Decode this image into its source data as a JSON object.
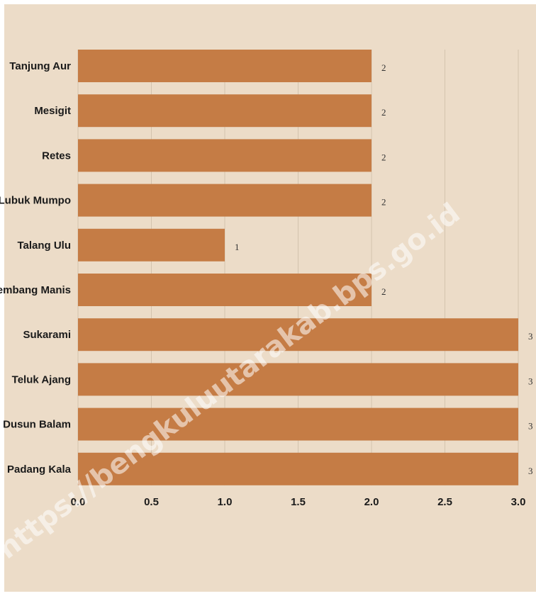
{
  "chart_data": {
    "type": "bar",
    "orientation": "horizontal",
    "categories": [
      "Tanjung Aur",
      "Mesigit",
      "Retes",
      "Lubuk Mumpo",
      "Talang Ulu",
      "Kembang Manis",
      "Sukarami",
      "Teluk Ajang",
      "Dusun Balam",
      "Padang Kala"
    ],
    "values": [
      2,
      2,
      2,
      2,
      1,
      2,
      3,
      3,
      3,
      3
    ],
    "x_ticks": [
      "0.0",
      "0.5",
      "1.0",
      "1.5",
      "2.0",
      "2.5",
      "3.0"
    ],
    "xlim": [
      0,
      3
    ],
    "grid": "vertical",
    "bar_color": "#c57c45",
    "background_color": "#ecdcc8",
    "watermark": "https://bengkuluutarakab.bps.go.id"
  }
}
